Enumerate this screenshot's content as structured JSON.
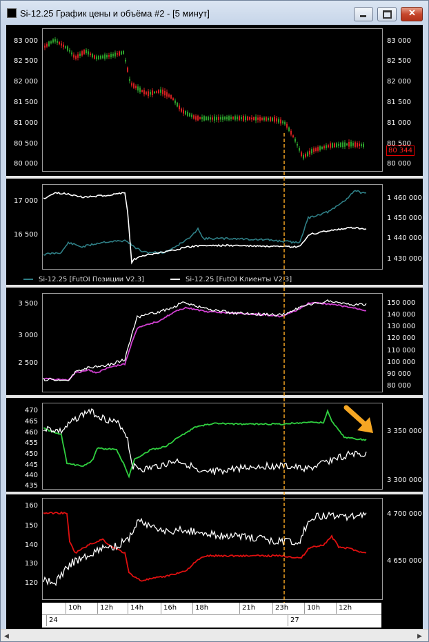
{
  "window": {
    "title": "Si-12.25 График цены и объёма #2 - [5 минут]",
    "min_icon": "minimize-icon",
    "max_icon": "maximize-icon",
    "close_icon": "close-icon"
  },
  "panes": {
    "price": {
      "left_ticks": [
        "83 000",
        "82 500",
        "82 000",
        "81 500",
        "81 000",
        "80 500",
        "80 000"
      ],
      "right_ticks": [
        "83 000",
        "82 500",
        "82 000",
        "81 500",
        "81 000",
        "80 500",
        "80 000"
      ],
      "last_price": "80 344"
    },
    "oi": {
      "left_ticks": [
        "17 000",
        "16 500"
      ],
      "right_ticks": [
        "1 460 000",
        "1 450 000",
        "1 440 000",
        "1 430 000"
      ],
      "legend": [
        {
          "label": "Si-12.25 [FutOI Позиции V2.3]",
          "color": "#2f7f86"
        },
        {
          "label": "Si-12.25 [FutOI Клиенты V2.3]",
          "color": "#ffffff"
        }
      ]
    },
    "pane3": {
      "left_ticks": [
        "3 500",
        "3 000",
        "2 500"
      ],
      "right_ticks": [
        "150 000",
        "140 000",
        "130 000",
        "120 000",
        "110 000",
        "100 000",
        "90 000",
        "80 000"
      ],
      "line_colors": [
        "#d040d0",
        "#ffffff"
      ]
    },
    "pane4": {
      "left_ticks": [
        "470",
        "465",
        "460",
        "455",
        "450",
        "445",
        "440",
        "435"
      ],
      "right_ticks": [
        "3 350 000",
        "3 300 000"
      ],
      "line_colors": [
        "#30d040",
        "#ffffff"
      ],
      "annotation_color": "#f5a623"
    },
    "pane5": {
      "left_ticks": [
        "160",
        "150",
        "140",
        "130",
        "120"
      ],
      "right_ticks": [
        "4 700 000",
        "4 650 000"
      ],
      "line_colors": [
        "#e01010",
        "#ffffff"
      ]
    }
  },
  "time_axis": {
    "hour_labels": [
      "10h",
      "12h",
      "14h",
      "16h",
      "18h",
      "21h",
      "23h",
      "10h",
      "12h"
    ],
    "date_labels": [
      "24",
      "27"
    ]
  },
  "crosshair_color": "#f5a623"
}
